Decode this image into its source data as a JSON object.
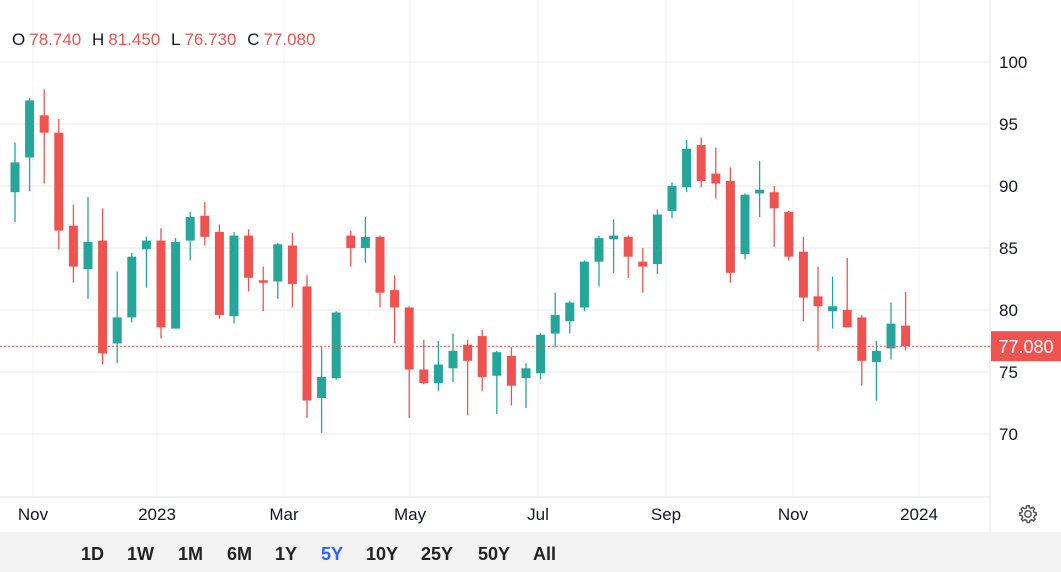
{
  "legend": {
    "o_label": "O",
    "o_value": "78.740",
    "h_label": "H",
    "h_value": "81.450",
    "l_label": "L",
    "l_value": "76.730",
    "c_label": "C",
    "c_value": "77.080"
  },
  "colors": {
    "up": "#26a69a",
    "down": "#ef5350",
    "active_range": "#2962ff"
  },
  "chart_data": {
    "type": "candlestick",
    "ylim": [
      65,
      104
    ],
    "yticks": [
      "70",
      "75",
      "80",
      "85",
      "90",
      "95",
      "100"
    ],
    "xticks": [
      "Nov",
      "2023",
      "Mar",
      "May",
      "Jul",
      "Sep",
      "Nov",
      "2024"
    ],
    "grid": true,
    "last_price": "77.080",
    "ohlc": [
      [
        89.5,
        93.5,
        87.1,
        91.9
      ],
      [
        92.3,
        97.1,
        89.6,
        96.9
      ],
      [
        95.7,
        97.8,
        90.2,
        94.3
      ],
      [
        94.3,
        95.4,
        84.9,
        86.4
      ],
      [
        86.8,
        88.5,
        82.2,
        83.5
      ],
      [
        83.3,
        89.1,
        80.9,
        85.5
      ],
      [
        85.6,
        88.2,
        75.6,
        76.5
      ],
      [
        77.3,
        83.1,
        75.7,
        79.4
      ],
      [
        79.4,
        84.6,
        79.0,
        84.3
      ],
      [
        84.9,
        85.9,
        81.8,
        85.6
      ],
      [
        85.6,
        86.6,
        77.7,
        78.6
      ],
      [
        78.5,
        85.8,
        78.5,
        85.5
      ],
      [
        85.6,
        87.9,
        84.0,
        87.5
      ],
      [
        87.6,
        88.7,
        85.2,
        85.9
      ],
      [
        86.3,
        86.9,
        79.3,
        79.6
      ],
      [
        79.5,
        86.3,
        78.9,
        86.0
      ],
      [
        86.0,
        86.5,
        81.5,
        82.6
      ],
      [
        82.4,
        83.5,
        79.9,
        82.2
      ],
      [
        82.3,
        85.4,
        80.9,
        85.3
      ],
      [
        85.2,
        86.2,
        80.2,
        82.1
      ],
      [
        81.9,
        82.8,
        71.3,
        72.7
      ],
      [
        72.9,
        77.0,
        70.1,
        74.6
      ],
      [
        74.5,
        79.9,
        74.4,
        79.8
      ],
      [
        86.0,
        86.4,
        83.5,
        85.0
      ],
      [
        85.0,
        87.5,
        83.8,
        85.9
      ],
      [
        85.9,
        86.0,
        80.2,
        81.4
      ],
      [
        81.6,
        82.8,
        77.3,
        80.2
      ],
      [
        80.2,
        80.3,
        71.3,
        75.2
      ],
      [
        75.2,
        77.6,
        74.0,
        74.1
      ],
      [
        74.1,
        77.5,
        73.5,
        75.6
      ],
      [
        75.3,
        78.1,
        74.2,
        76.7
      ],
      [
        77.2,
        77.6,
        71.5,
        75.9
      ],
      [
        77.9,
        78.4,
        73.5,
        74.6
      ],
      [
        74.7,
        76.7,
        71.6,
        76.6
      ],
      [
        76.3,
        77.0,
        72.3,
        73.9
      ],
      [
        74.5,
        75.7,
        72.1,
        75.3
      ],
      [
        74.9,
        78.1,
        74.4,
        78.0
      ],
      [
        78.1,
        81.4,
        77.0,
        79.6
      ],
      [
        79.1,
        80.7,
        78.1,
        80.6
      ],
      [
        80.2,
        84.0,
        79.9,
        83.9
      ],
      [
        83.9,
        86.0,
        81.9,
        85.8
      ],
      [
        85.7,
        87.3,
        83.0,
        86.0
      ],
      [
        85.9,
        86.0,
        82.6,
        84.3
      ],
      [
        83.9,
        85.0,
        81.4,
        83.5
      ],
      [
        83.7,
        88.1,
        82.9,
        87.7
      ],
      [
        88.0,
        90.3,
        87.4,
        90.0
      ],
      [
        89.9,
        93.7,
        89.5,
        93.0
      ],
      [
        93.3,
        93.9,
        89.9,
        90.4
      ],
      [
        91.0,
        93.1,
        89.0,
        90.2
      ],
      [
        90.4,
        91.5,
        82.2,
        83.0
      ],
      [
        84.5,
        89.4,
        84.1,
        89.3
      ],
      [
        89.4,
        92.0,
        87.5,
        89.7
      ],
      [
        89.5,
        90.0,
        85.1,
        88.2
      ],
      [
        87.9,
        88.0,
        84.0,
        84.3
      ],
      [
        84.7,
        85.9,
        79.1,
        81.0
      ],
      [
        81.1,
        83.5,
        76.7,
        80.3
      ],
      [
        79.9,
        82.7,
        78.5,
        80.3
      ],
      [
        80.0,
        84.2,
        78.6,
        78.6
      ],
      [
        79.4,
        79.6,
        73.9,
        75.9
      ],
      [
        75.8,
        77.5,
        72.7,
        76.7
      ],
      [
        76.9,
        80.6,
        76.0,
        78.9
      ],
      [
        78.74,
        81.45,
        76.73,
        77.08
      ]
    ]
  },
  "toolbar": {
    "ranges": [
      "1D",
      "1W",
      "1M",
      "6M",
      "1Y",
      "5Y",
      "10Y",
      "25Y",
      "50Y",
      "All"
    ],
    "active": "5Y"
  },
  "settings_icon": "gear-icon"
}
